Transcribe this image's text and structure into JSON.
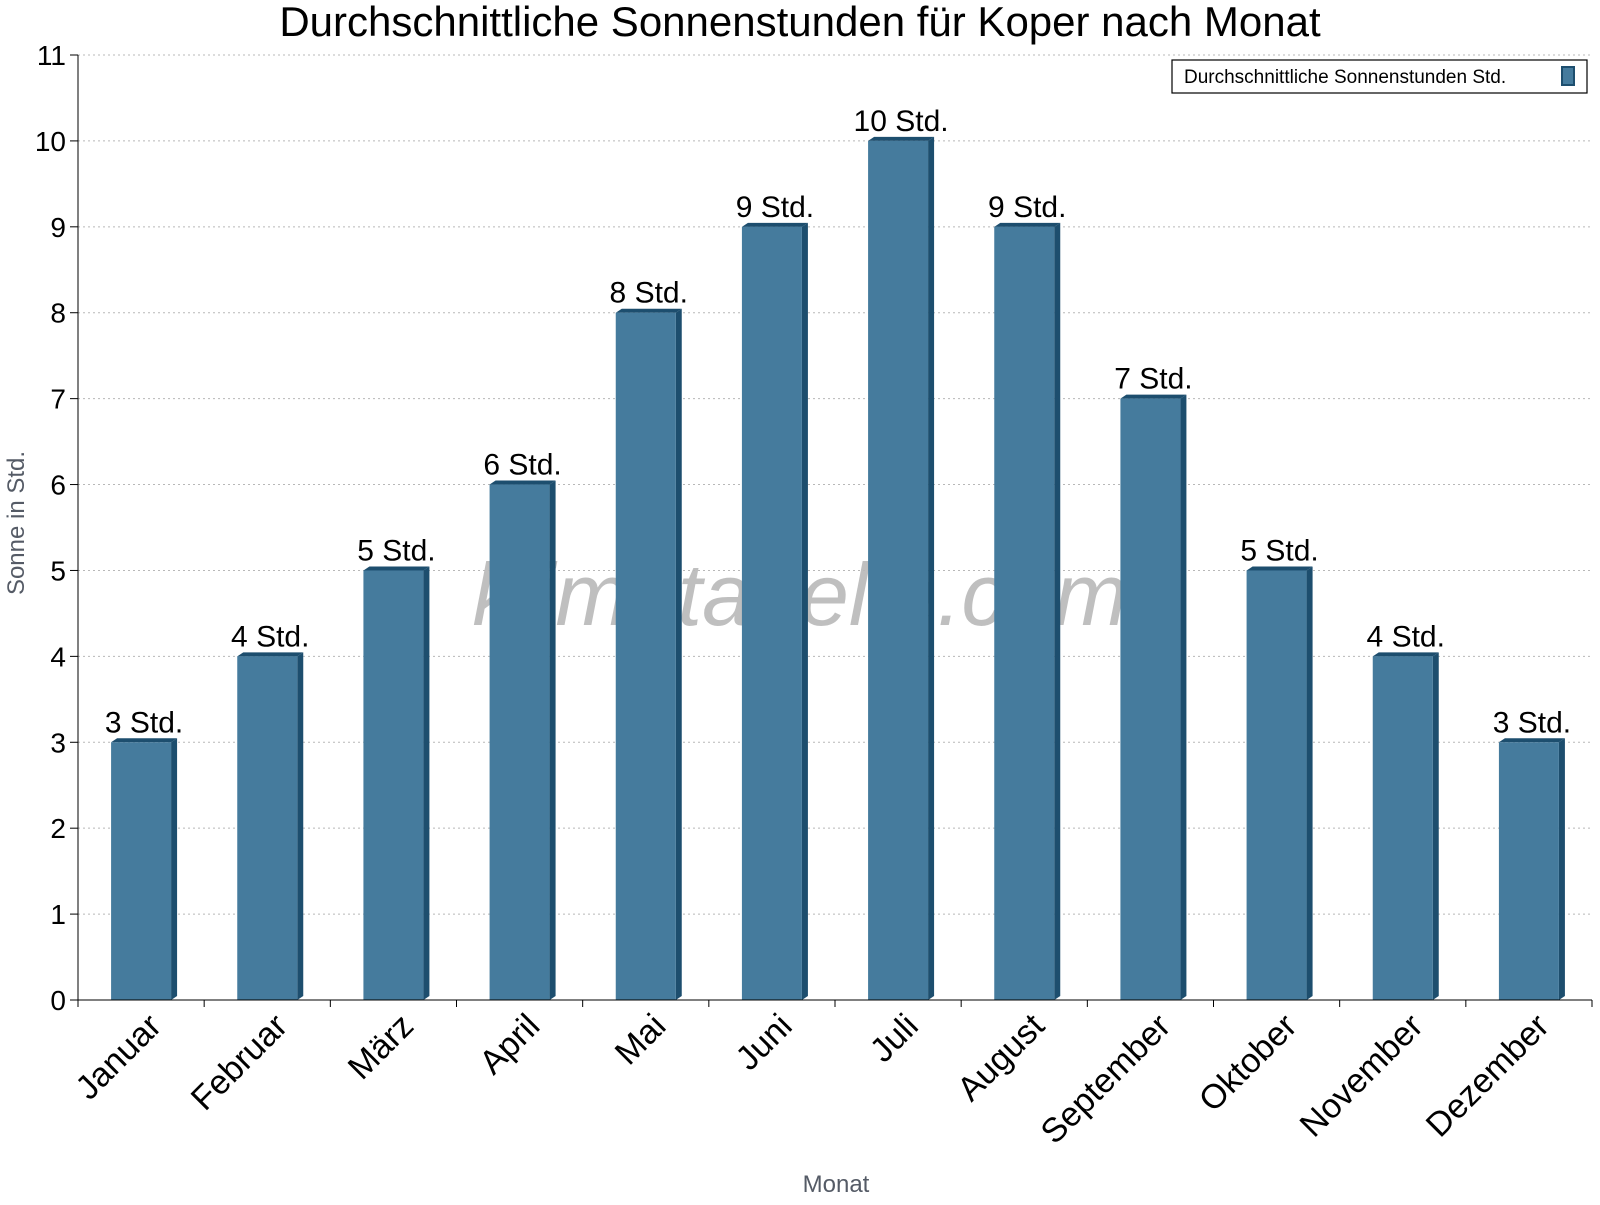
{
  "chart_data": {
    "type": "bar",
    "title": "Durchschnittliche Sonnenstunden für Koper nach Monat",
    "xlabel": "Monat",
    "ylabel": "Sonne in Std.",
    "ylim": [
      0,
      11
    ],
    "yticks": [
      0,
      1,
      2,
      3,
      4,
      5,
      6,
      7,
      8,
      9,
      10,
      11
    ],
    "grid": true,
    "legend_position": "top-right",
    "categories": [
      "Januar",
      "Februar",
      "März",
      "April",
      "Mai",
      "Juni",
      "Juli",
      "August",
      "September",
      "Oktober",
      "November",
      "Dezember"
    ],
    "series": [
      {
        "name": "Durchschnittliche Sonnenstunden Std.",
        "values": [
          3,
          4,
          5,
          6,
          8,
          9,
          10,
          9,
          7,
          5,
          4,
          3
        ],
        "labels": [
          "3 Std.",
          "4 Std.",
          "5 Std.",
          "6 Std.",
          "8 Std.",
          "9 Std.",
          "10 Std.",
          "9 Std.",
          "7 Std.",
          "5 Std.",
          "4 Std.",
          "3 Std."
        ],
        "color": "#457b9d",
        "side_color": "#1d4e6e"
      }
    ],
    "watermark": "klimatabelle.com"
  }
}
